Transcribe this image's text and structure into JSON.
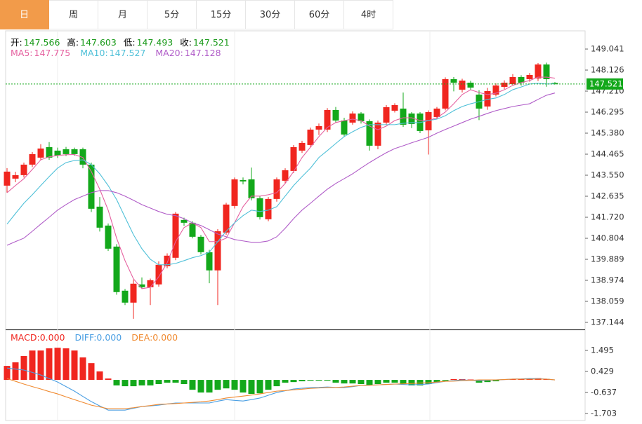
{
  "tabs": [
    "日",
    "周",
    "月",
    "5分",
    "15分",
    "30分",
    "60分",
    "4时"
  ],
  "active_tab": 0,
  "chart_data": [
    {
      "type": "candlestick",
      "info": [
        {
          "label": "开:",
          "value": "147.566"
        },
        {
          "label": "高:",
          "value": "147.603"
        },
        {
          "label": "低:",
          "value": "147.493"
        },
        {
          "label": "收:",
          "value": "147.521"
        }
      ],
      "info_color": "#1a9a1a",
      "up_color": "#f0261f",
      "down_color": "#13a81b",
      "open": [
        143.096,
        143.401,
        143.553,
        144.01,
        144.315,
        144.773,
        144.62,
        144.681,
        144.681,
        144.681,
        144.01,
        142.181,
        141.358,
        140.443,
        138.523,
        138.004,
        138.797,
        138.675,
        138.797,
        139.59,
        139.956,
        141.602,
        141.48,
        140.87,
        140.199,
        139.407,
        141.053,
        142.212,
        143.34,
        143.37,
        142.547,
        141.632,
        142.517,
        143.309,
        143.736,
        144.62,
        144.864,
        145.535,
        145.535,
        146.389,
        145.931,
        145.84,
        146.236,
        145.901,
        144.834,
        145.84,
        146.358,
        146.45,
        146.236,
        146.236,
        145.504,
        146.084,
        146.45,
        147.73,
        147.273,
        147.578,
        147.059,
        146.541,
        147.059,
        147.395,
        147.517,
        147.821,
        147.73,
        147.761,
        148.37,
        147.566
      ],
      "high": [
        143.86,
        143.7,
        144.1,
        144.56,
        144.9,
        144.99,
        144.75,
        144.78,
        144.75,
        144.75,
        144.1,
        142.6,
        141.45,
        140.55,
        138.6,
        139.0,
        139.1,
        139.05,
        139.8,
        140.15,
        141.95,
        141.7,
        141.55,
        140.95,
        140.3,
        141.2,
        142.35,
        143.45,
        143.45,
        143.88,
        142.65,
        142.6,
        143.45,
        143.85,
        144.86,
        145.05,
        145.62,
        145.8,
        146.47,
        146.52,
        146.05,
        146.33,
        146.3,
        145.98,
        145.93,
        146.6,
        146.68,
        147.15,
        146.3,
        146.3,
        146.37,
        146.52,
        147.81,
        147.82,
        147.75,
        147.66,
        147.25,
        147.35,
        147.55,
        147.68,
        147.95,
        147.9,
        148.0,
        148.43,
        148.45,
        147.603
      ],
      "low": [
        142.79,
        143.25,
        143.45,
        143.9,
        144.2,
        144.22,
        144.3,
        144.38,
        144.4,
        143.85,
        141.95,
        141.1,
        140.25,
        138.35,
        137.9,
        137.3,
        138.6,
        137.9,
        138.7,
        139.5,
        139.85,
        141.35,
        140.8,
        140.1,
        138.85,
        137.9,
        140.95,
        142.1,
        143.15,
        142.45,
        141.62,
        141.55,
        142.4,
        143.2,
        143.65,
        144.52,
        144.76,
        145.3,
        145.43,
        145.85,
        145.22,
        145.75,
        145.8,
        144.62,
        144.68,
        145.75,
        146.28,
        145.65,
        145.6,
        145.38,
        144.45,
        146.0,
        146.37,
        147.2,
        147.15,
        147.25,
        145.95,
        146.4,
        146.98,
        147.3,
        147.45,
        147.45,
        147.62,
        147.65,
        147.4,
        147.493
      ],
      "close": [
        143.706,
        143.553,
        144.01,
        144.468,
        144.712,
        144.315,
        144.407,
        144.468,
        144.468,
        144.01,
        142.09,
        141.267,
        140.352,
        138.462,
        138.004,
        138.828,
        138.675,
        138.98,
        139.651,
        140.047,
        141.876,
        141.48,
        140.87,
        140.199,
        139.407,
        141.114,
        142.273,
        143.37,
        143.279,
        142.547,
        141.724,
        142.517,
        143.37,
        143.767,
        144.773,
        144.956,
        145.535,
        145.687,
        146.389,
        145.931,
        145.321,
        146.236,
        145.901,
        144.834,
        145.84,
        146.511,
        146.602,
        145.748,
        145.779,
        145.474,
        146.297,
        146.45,
        147.73,
        147.578,
        147.669,
        147.364,
        146.45,
        147.212,
        147.456,
        147.578,
        147.821,
        147.578,
        147.913,
        148.37,
        147.73,
        147.521
      ],
      "ma": [
        {
          "label": "MA5:",
          "current": 147.775,
          "color": "#e5609f",
          "values": [
            142.79,
            143.1,
            143.4,
            143.8,
            144.22,
            144.35,
            144.41,
            144.44,
            144.45,
            144.32,
            143.71,
            142.94,
            142.03,
            140.81,
            139.83,
            139.04,
            138.61,
            138.67,
            139.13,
            139.74,
            140.66,
            141.27,
            141.48,
            141.27,
            140.66,
            140.66,
            140.81,
            141.48,
            142.18,
            142.64,
            142.64,
            142.7,
            142.79,
            143.19,
            143.71,
            144.32,
            144.77,
            145.23,
            145.63,
            145.84,
            145.93,
            145.99,
            145.93,
            145.69,
            145.53,
            145.69,
            145.93,
            146.05,
            146.05,
            145.93,
            145.93,
            146.05,
            146.3,
            146.66,
            147.06,
            147.27,
            147.15,
            147.06,
            147.12,
            147.27,
            147.46,
            147.58,
            147.67,
            147.82,
            147.82,
            147.775
          ]
        },
        {
          "label": "MA10:",
          "current": 147.527,
          "color": "#4fc0d8",
          "values": [
            141.42,
            141.88,
            142.33,
            142.7,
            143.1,
            143.49,
            143.86,
            144.1,
            144.19,
            144.22,
            144.01,
            143.61,
            143.1,
            142.49,
            141.72,
            140.96,
            140.35,
            139.89,
            139.65,
            139.65,
            139.71,
            139.83,
            139.96,
            140.05,
            140.2,
            140.66,
            141.11,
            141.48,
            141.79,
            142.03,
            141.97,
            142.03,
            142.18,
            142.64,
            143.1,
            143.49,
            143.86,
            144.32,
            144.62,
            144.93,
            145.23,
            145.44,
            145.63,
            145.75,
            145.75,
            145.75,
            145.75,
            145.81,
            145.84,
            145.84,
            145.93,
            145.99,
            146.14,
            146.36,
            146.54,
            146.66,
            146.75,
            146.85,
            146.91,
            147.06,
            147.27,
            147.39,
            147.52,
            147.55,
            147.52,
            147.527
          ]
        },
        {
          "label": "MA20:",
          "current": 147.128,
          "color": "#b05cc8",
          "values": [
            140.5,
            140.66,
            140.81,
            141.11,
            141.42,
            141.72,
            142.03,
            142.27,
            142.49,
            142.64,
            142.79,
            142.88,
            142.88,
            142.79,
            142.64,
            142.46,
            142.27,
            142.12,
            141.97,
            141.85,
            141.79,
            141.66,
            141.48,
            141.36,
            141.18,
            140.99,
            140.87,
            140.75,
            140.69,
            140.63,
            140.63,
            140.69,
            140.87,
            141.24,
            141.66,
            142.03,
            142.33,
            142.64,
            142.94,
            143.19,
            143.4,
            143.61,
            143.86,
            144.1,
            144.32,
            144.53,
            144.71,
            144.83,
            144.96,
            145.08,
            145.2,
            145.38,
            145.54,
            145.69,
            145.84,
            145.99,
            146.11,
            146.24,
            146.36,
            146.45,
            146.54,
            146.6,
            146.66,
            146.85,
            147.03,
            147.128
          ]
        }
      ],
      "last_price": 147.521,
      "last_color": "#13a81b",
      "ylim": [
        136.839,
        149.834
      ],
      "yticks": [
        149.041,
        148.126,
        {
          "value": 147.21,
          "label": "147.210"
        },
        146.295,
        {
          "value": 145.38,
          "label": "145.380"
        },
        144.465,
        {
          "value": 143.55,
          "label": "143.550"
        },
        142.635,
        {
          "value": 141.72,
          "label": "141.720"
        },
        140.804,
        139.889,
        138.974,
        138.059,
        137.144
      ]
    },
    {
      "type": "macd",
      "histogram": {
        "label": "MACD:",
        "current": "0.000",
        "color": "#f0261f",
        "up_color": "#f0261f",
        "down_color": "#13a81b",
        "values": [
          0.71,
          0.89,
          1.21,
          1.49,
          1.49,
          1.6,
          1.63,
          1.6,
          1.49,
          1.14,
          0.85,
          0.43,
          0.07,
          -0.28,
          -0.32,
          -0.32,
          -0.28,
          -0.28,
          -0.21,
          -0.14,
          -0.14,
          -0.21,
          -0.5,
          -0.64,
          -0.64,
          -0.5,
          -0.43,
          -0.5,
          -0.64,
          -0.71,
          -0.68,
          -0.5,
          -0.32,
          -0.14,
          -0.11,
          -0.07,
          -0.04,
          -0.04,
          -0.04,
          -0.14,
          -0.18,
          -0.18,
          -0.21,
          -0.28,
          -0.21,
          -0.14,
          -0.14,
          -0.21,
          -0.28,
          -0.28,
          -0.21,
          -0.11,
          -0.04,
          0.04,
          0.04,
          0.02,
          -0.14,
          -0.11,
          -0.07,
          0.02,
          0.04,
          0.05,
          0.05,
          0.09,
          0.05,
          0.0
        ]
      },
      "series": [
        {
          "label": "DIFF:",
          "current": "0.000",
          "color": "#4b9fe3",
          "values": [
            0.6,
            0.55,
            0.5,
            0.38,
            0.25,
            0.07,
            -0.11,
            -0.34,
            -0.57,
            -0.84,
            -1.1,
            -1.32,
            -1.53,
            -1.53,
            -1.53,
            -1.44,
            -1.35,
            -1.32,
            -1.28,
            -1.22,
            -1.17,
            -1.17,
            -1.17,
            -1.17,
            -1.17,
            -1.08,
            -1.0,
            -1.04,
            -1.07,
            -1.0,
            -0.92,
            -0.78,
            -0.64,
            -0.55,
            -0.46,
            -0.42,
            -0.39,
            -0.38,
            -0.36,
            -0.38,
            -0.39,
            -0.34,
            -0.28,
            -0.27,
            -0.25,
            -0.23,
            -0.21,
            -0.23,
            -0.25,
            -0.23,
            -0.21,
            -0.14,
            -0.07,
            -0.04,
            0.0,
            -0.02,
            -0.04,
            -0.02,
            0.0,
            0.02,
            0.04,
            0.05,
            0.07,
            0.06,
            0.04,
            0.0
          ]
        },
        {
          "label": "DEA:",
          "current": "0.000",
          "color": "#f08a30",
          "values": [
            0.07,
            -0.07,
            -0.21,
            -0.34,
            -0.46,
            -0.59,
            -0.71,
            -0.86,
            -1.0,
            -1.14,
            -1.28,
            -1.37,
            -1.46,
            -1.46,
            -1.46,
            -1.41,
            -1.35,
            -1.3,
            -1.24,
            -1.22,
            -1.2,
            -1.17,
            -1.14,
            -1.11,
            -1.07,
            -1.0,
            -0.92,
            -0.87,
            -0.82,
            -0.77,
            -0.71,
            -0.64,
            -0.57,
            -0.54,
            -0.5,
            -0.47,
            -0.43,
            -0.41,
            -0.39,
            -0.38,
            -0.36,
            -0.32,
            -0.28,
            -0.27,
            -0.25,
            -0.23,
            -0.21,
            -0.2,
            -0.18,
            -0.16,
            -0.14,
            -0.11,
            -0.07,
            -0.06,
            -0.04,
            -0.02,
            0.0,
            0.0,
            0.0,
            0.02,
            0.04,
            0.04,
            0.04,
            0.04,
            0.04,
            0.0
          ]
        }
      ],
      "ylim": [
        -2.058,
        2.49
      ],
      "yticks": [
        1.495,
        0.429,
        -0.637,
        -1.703
      ]
    }
  ]
}
